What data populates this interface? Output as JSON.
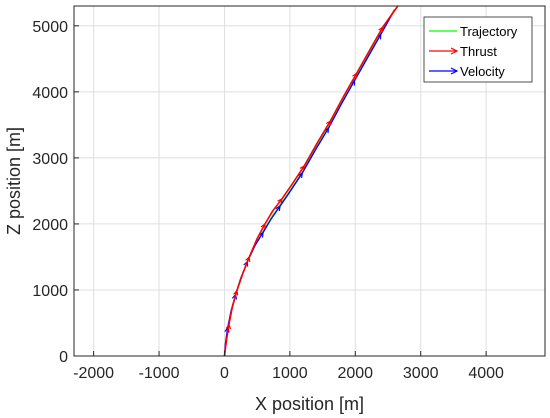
{
  "chart_data": {
    "type": "line",
    "xlabel": "X position [m]",
    "ylabel": "Z position [m]",
    "xlim": [
      -2300,
      4900
    ],
    "ylim": [
      0,
      5300
    ],
    "xticks": [
      -2000,
      -1000,
      0,
      1000,
      2000,
      3000,
      4000
    ],
    "yticks": [
      0,
      1000,
      2000,
      3000,
      4000,
      5000
    ],
    "grid": true,
    "legend": "top-right",
    "series": [
      {
        "name": "Trajectory",
        "color": "#00ff00",
        "x": [
          0,
          20,
          60,
          110,
          180,
          260,
          360,
          480,
          600,
          720,
          860,
          1000,
          1200,
          1400,
          1600,
          1800,
          2000,
          2200,
          2400,
          2600
        ],
        "y": [
          0,
          200,
          450,
          700,
          950,
          1200,
          1450,
          1700,
          1900,
          2100,
          2300,
          2500,
          2800,
          3150,
          3480,
          3850,
          4200,
          4550,
          4900,
          5250
        ]
      },
      {
        "name": "Thrust",
        "color": "#ff0000",
        "x": [
          0,
          30,
          70,
          120,
          190,
          280,
          380,
          500,
          620,
          740,
          880,
          1020,
          1220,
          1420,
          1620,
          1820,
          2020,
          2220,
          2420,
          2650
        ],
        "y": [
          0,
          230,
          480,
          740,
          990,
          1250,
          1500,
          1780,
          2000,
          2200,
          2380,
          2580,
          2880,
          3230,
          3560,
          3930,
          4280,
          4630,
          4980,
          5300
        ]
      },
      {
        "name": "Velocity",
        "color": "#0000ff",
        "x": [
          0,
          15,
          50,
          100,
          170,
          250,
          350,
          470,
          590,
          710,
          850,
          990,
          1190,
          1390,
          1590,
          1790,
          1990,
          2190,
          2390,
          2600
        ],
        "y": [
          0,
          190,
          430,
          680,
          930,
          1180,
          1430,
          1680,
          1870,
          2070,
          2270,
          2470,
          2770,
          3120,
          3450,
          3820,
          4170,
          4520,
          4870,
          5240
        ]
      }
    ]
  }
}
